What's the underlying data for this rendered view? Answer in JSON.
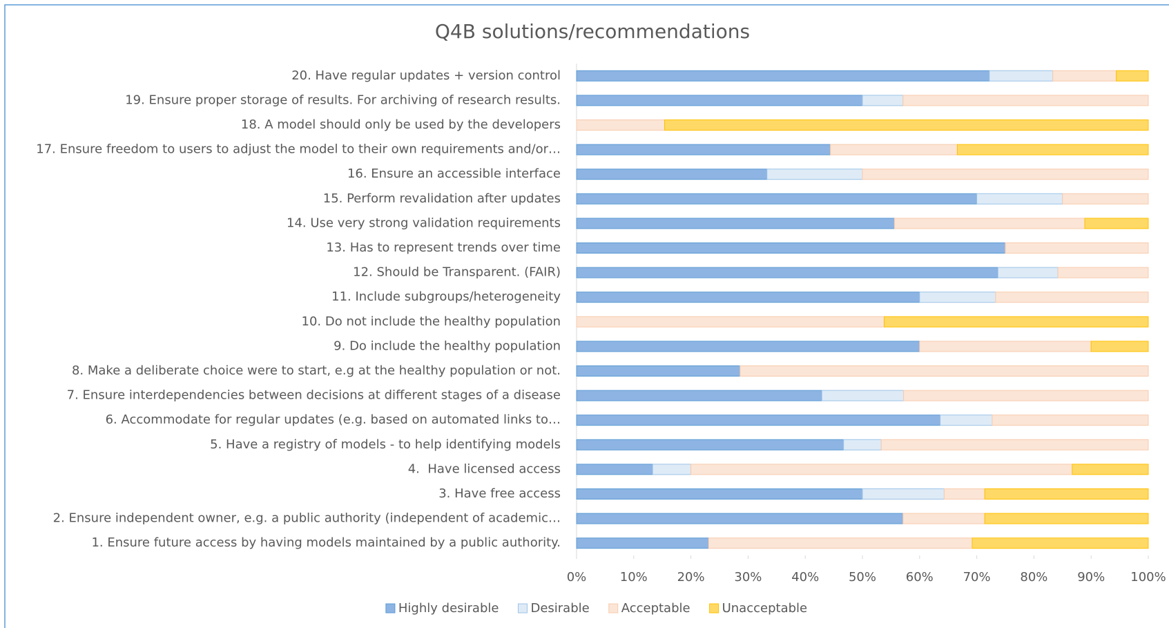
{
  "chart_data": {
    "type": "stacked_barh",
    "title": "Q4B solutions/recommendations",
    "categories": [
      "1. Ensure future access by having models maintained by a public authority.",
      "2. Ensure independent owner, e.g. a public authority (independent of academic…",
      "3. Have free access",
      "4.  Have licensed access",
      "5. Have a registry of models - to help identifying models",
      "6. Accommodate for regular updates (e.g. based on automated links to…",
      "7. Ensure interdependencies between decisions at different stages of a disease",
      "8. Make a deliberate choice were to start, e.g at the healthy population or not.",
      "9. Do include the healthy population",
      "10. Do not include the healthy population",
      "11. Include subgroups/heterogeneity",
      "12. Should be Transparent. (FAIR)",
      "13. Has to represent trends over time",
      "14. Use very strong validation requirements",
      "15. Perform revalidation after updates",
      "16. Ensure an accessible interface",
      "17. Ensure freedom to users to adjust the model to their own requirements and/or…",
      "18. A model should only be used by the developers",
      "19. Ensure proper storage of results. For archiving of research results.",
      "20. Have regular updates + version control"
    ],
    "series": [
      {
        "name": "Highly desirable",
        "color": "#8eb4e3",
        "edgecolor": "#5b9bd5",
        "values": [
          23.1,
          57.1,
          50,
          13.3,
          46.7,
          63.6,
          42.9,
          28.6,
          60,
          0,
          60,
          73.7,
          75,
          55.6,
          70,
          33.3,
          44.4,
          0,
          50,
          72.2
        ]
      },
      {
        "name": "Desirable",
        "color": "#deebf7",
        "edgecolor": "#9dc3e6",
        "values": [
          0,
          0,
          14.3,
          6.7,
          6.6,
          9.1,
          14.3,
          0,
          0,
          0,
          13.3,
          10.5,
          0,
          0,
          15,
          16.7,
          0,
          0,
          7.1,
          11.1
        ]
      },
      {
        "name": "Acceptable",
        "color": "#fbe5d6",
        "edgecolor": "#f8cbad",
        "values": [
          46.1,
          14.3,
          7.1,
          66.7,
          46.7,
          27.3,
          42.8,
          71.4,
          30,
          53.8,
          26.7,
          15.8,
          25,
          33.3,
          15,
          50,
          22.2,
          15.4,
          42.9,
          11.1
        ]
      },
      {
        "name": "Unacceptable",
        "color": "#ffd966",
        "edgecolor": "#ffc000",
        "values": [
          30.8,
          28.6,
          28.6,
          13.3,
          0,
          0,
          0,
          0,
          10,
          46.2,
          0,
          0,
          0,
          11.1,
          0,
          0,
          33.4,
          84.6,
          0,
          5.6
        ]
      }
    ],
    "xlim": [
      0,
      100
    ],
    "xticks": [
      {
        "value": 0,
        "label": "0%"
      },
      {
        "value": 10,
        "label": "10%"
      },
      {
        "value": 20,
        "label": "20%"
      },
      {
        "value": 30,
        "label": "30%"
      },
      {
        "value": 40,
        "label": "40%"
      },
      {
        "value": 50,
        "label": "50%"
      },
      {
        "value": 60,
        "label": "60%"
      },
      {
        "value": 70,
        "label": "70%"
      },
      {
        "value": 80,
        "label": "80%"
      },
      {
        "value": 90,
        "label": "90%"
      },
      {
        "value": 100,
        "label": "100%"
      }
    ],
    "legend": "bottom"
  }
}
